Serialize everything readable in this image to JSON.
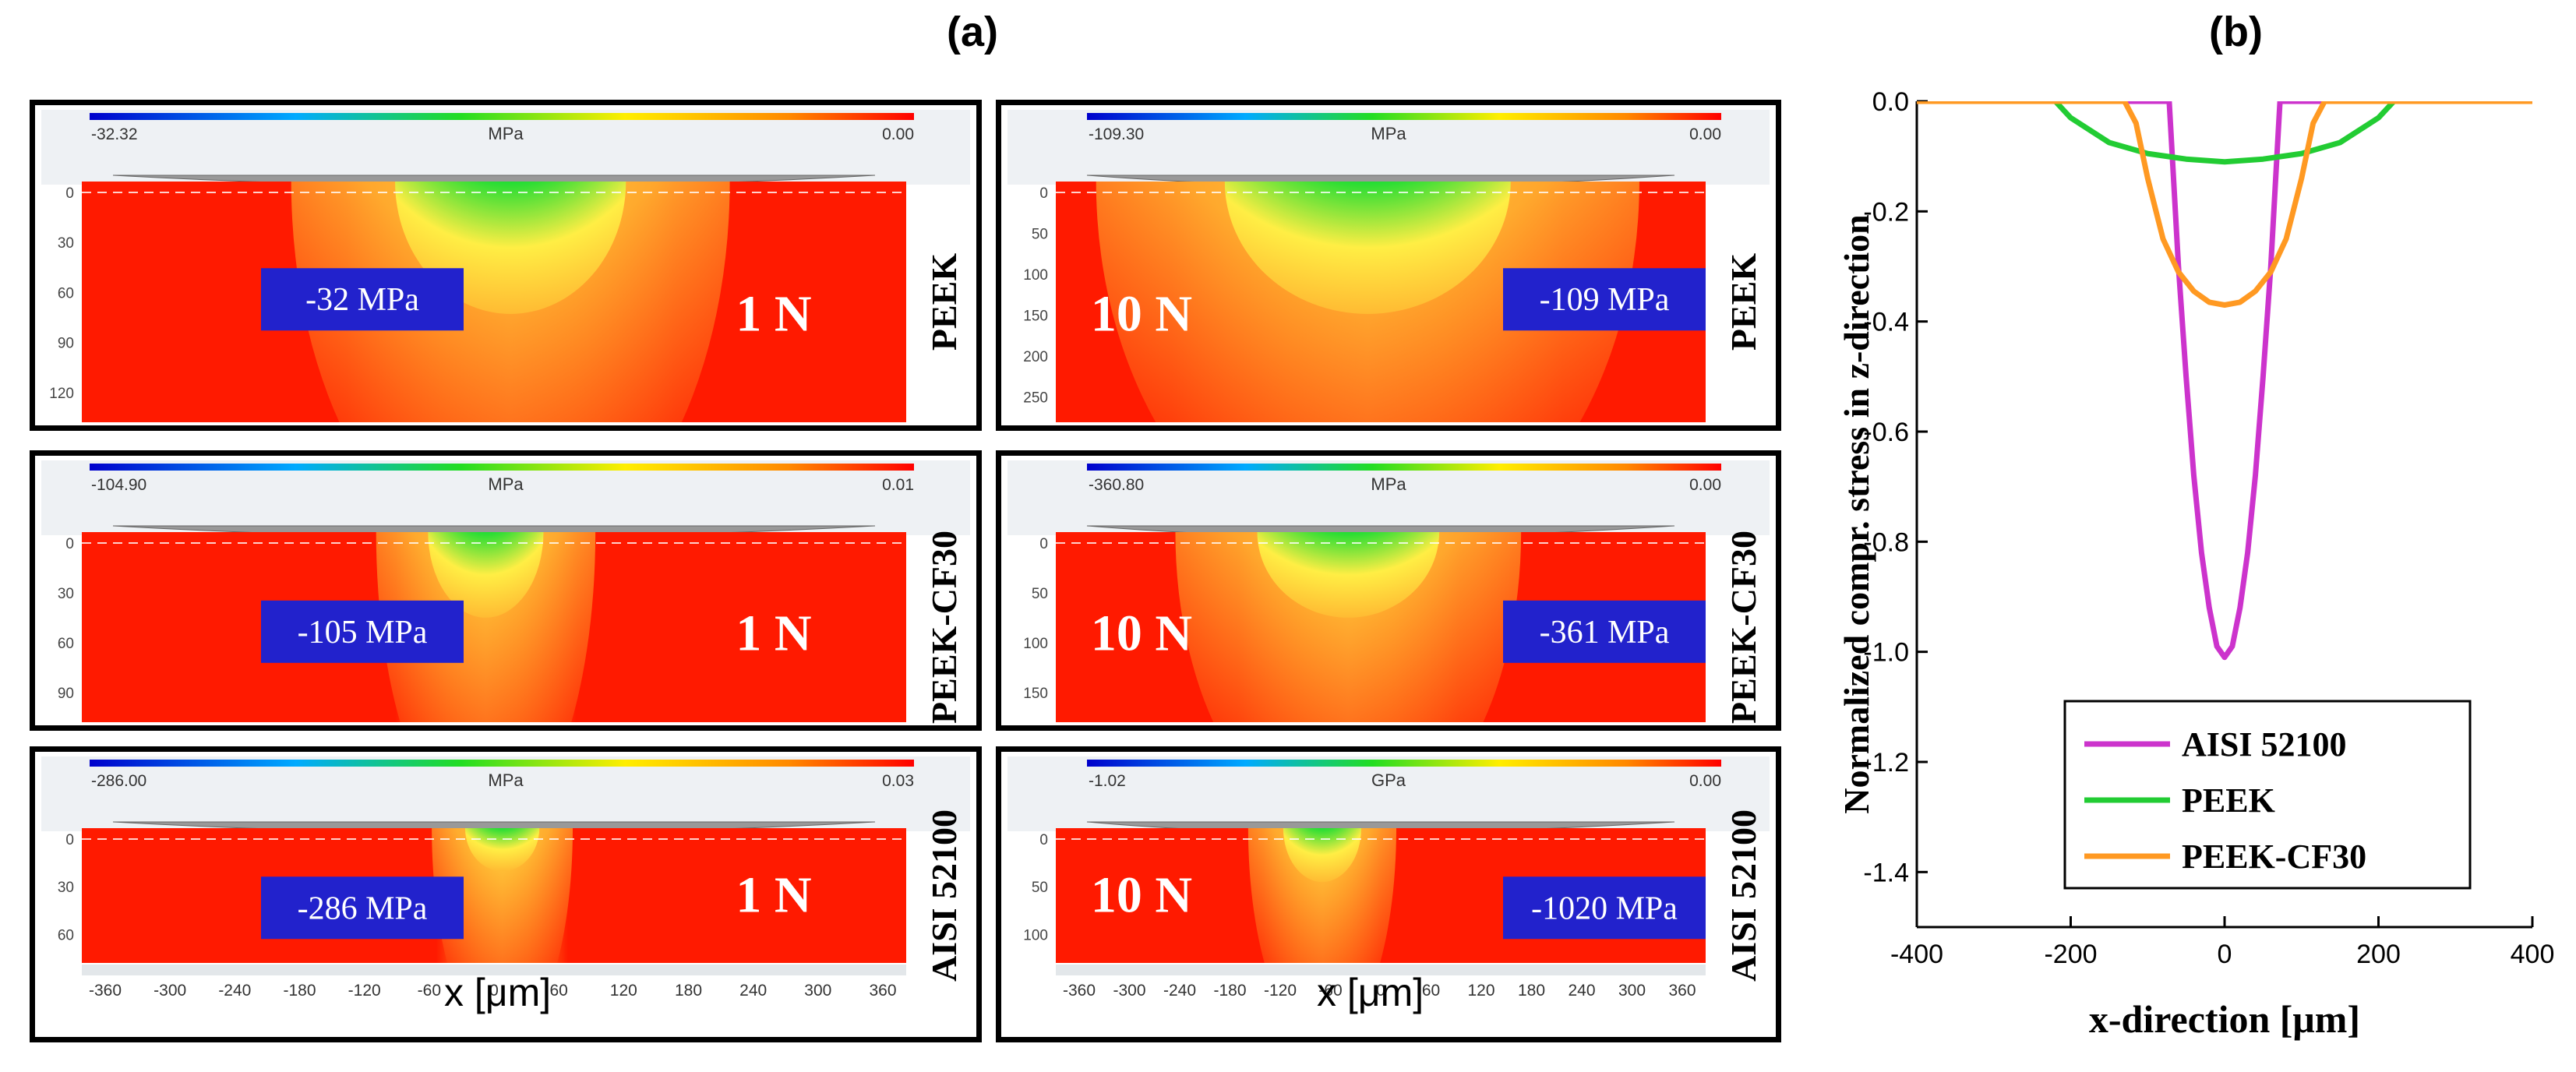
{
  "figure": {
    "label_a": "(a)",
    "label_b": "(b)",
    "panel_a_xlabel": "x [μm]",
    "x_ticks": [
      "-360",
      "-300",
      "-240",
      "-180",
      "-120",
      "-60",
      "0",
      "60",
      "120",
      "180",
      "240",
      "300",
      "360"
    ]
  },
  "panels": [
    {
      "unit": "MPa",
      "min_label": "-32.32",
      "max_label": "0.00",
      "stress_label": "-32 MPa",
      "load_label": "1 N",
      "material": "PEEK",
      "depth_ticks": [
        "0",
        "30",
        "60",
        "90",
        "120"
      ],
      "min_stress_mpa": -32,
      "load_n": 1
    },
    {
      "unit": "MPa",
      "min_label": "-109.30",
      "max_label": "0.00",
      "stress_label": "-109 MPa",
      "load_label": "10 N",
      "material": "PEEK",
      "depth_ticks": [
        "0",
        "50",
        "100",
        "150",
        "200",
        "250"
      ],
      "min_stress_mpa": -109,
      "load_n": 10
    },
    {
      "unit": "MPa",
      "min_label": "-104.90",
      "max_label": "0.01",
      "stress_label": "-105 MPa",
      "load_label": "1 N",
      "material": "PEEK-CF30",
      "depth_ticks": [
        "0",
        "30",
        "60",
        "90"
      ],
      "min_stress_mpa": -105,
      "load_n": 1
    },
    {
      "unit": "MPa",
      "min_label": "-360.80",
      "max_label": "0.00",
      "stress_label": "-361 MPa",
      "load_label": "10 N",
      "material": "PEEK-CF30",
      "depth_ticks": [
        "0",
        "50",
        "100",
        "150"
      ],
      "min_stress_mpa": -361,
      "load_n": 10
    },
    {
      "unit": "MPa",
      "min_label": "-286.00",
      "max_label": "0.03",
      "stress_label": "-286 MPa",
      "load_label": "1 N",
      "material": "AISI 52100",
      "depth_ticks": [
        "0",
        "30",
        "60"
      ],
      "min_stress_mpa": -286,
      "load_n": 1
    },
    {
      "unit": "GPa",
      "min_label": "-1.02",
      "max_label": "0.00",
      "stress_label": "-1020 MPa",
      "load_label": "10 N",
      "material": "AISI 52100",
      "depth_ticks": [
        "0",
        "50",
        "100"
      ],
      "min_stress_mpa": -1020,
      "load_n": 10
    }
  ],
  "colors": {
    "red": "#ff1a00",
    "blue": "#1515d0",
    "green": "#22dd22",
    "yellow": "#ffee44",
    "label_bg": "#2222cc"
  },
  "chart_data": {
    "type": "line",
    "xlabel": "x-direction [μm]",
    "ylabel": "Normalized compr. stress in z-direction",
    "xlim": [
      -400,
      400
    ],
    "ylim": [
      -1.5,
      0.0
    ],
    "x_ticks": [
      -400,
      -200,
      0,
      200,
      400
    ],
    "y_ticks": [
      0.0,
      -0.2,
      -0.4,
      -0.6,
      -0.8,
      -1.0,
      -1.2,
      -1.4
    ],
    "legend_position": "bottom-center",
    "series": [
      {
        "name": "AISI 52100",
        "color": "#cc33cc",
        "x": [
          -400,
          -72,
          -70,
          -60,
          -50,
          -40,
          -30,
          -20,
          -10,
          0,
          10,
          20,
          30,
          40,
          50,
          60,
          70,
          72,
          400
        ],
        "y": [
          0,
          0,
          -0.05,
          -0.3,
          -0.5,
          -0.68,
          -0.82,
          -0.92,
          -0.99,
          -1.01,
          -0.99,
          -0.92,
          -0.82,
          -0.68,
          -0.5,
          -0.3,
          -0.05,
          0,
          0
        ]
      },
      {
        "name": "PEEK",
        "color": "#22cc33",
        "x": [
          -400,
          -220,
          -200,
          -150,
          -100,
          -50,
          0,
          50,
          100,
          150,
          200,
          220,
          400
        ],
        "y": [
          0,
          0,
          -0.03,
          -0.075,
          -0.095,
          -0.105,
          -0.11,
          -0.105,
          -0.095,
          -0.075,
          -0.03,
          0,
          0
        ]
      },
      {
        "name": "PEEK-CF30",
        "color": "#ff9922",
        "x": [
          -400,
          -130,
          -115,
          -100,
          -80,
          -60,
          -40,
          -20,
          0,
          20,
          40,
          60,
          80,
          100,
          115,
          130,
          400
        ],
        "y": [
          0,
          0,
          -0.04,
          -0.14,
          -0.25,
          -0.31,
          -0.345,
          -0.365,
          -0.37,
          -0.365,
          -0.345,
          -0.31,
          -0.25,
          -0.14,
          -0.04,
          0,
          0
        ]
      }
    ]
  }
}
